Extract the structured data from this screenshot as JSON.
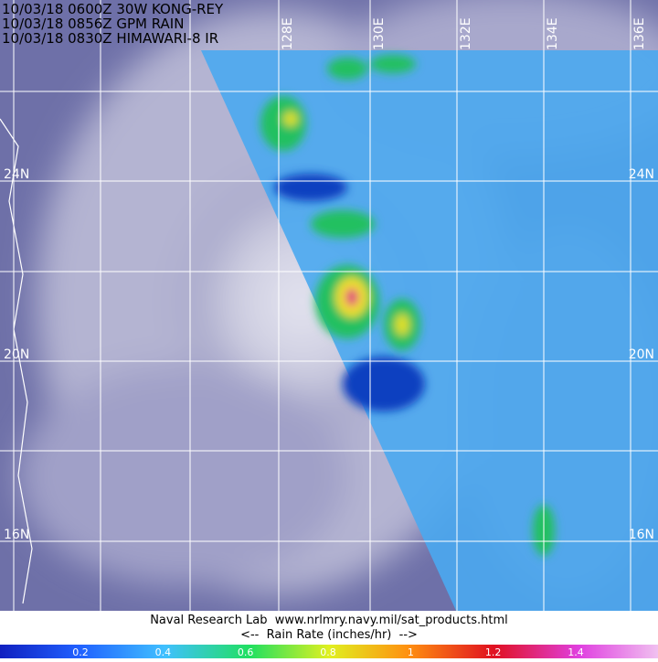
{
  "header": {
    "lines": [
      "10/03/18 0600Z 30W KONG-REY",
      "10/03/18 0856Z GPM RAIN",
      "10/03/18 0830Z HIMAWARI-8 IR"
    ]
  },
  "longitudes": [
    "128E",
    "130E",
    "132E",
    "134E",
    "136E"
  ],
  "latitudes": {
    "left": [
      "24N",
      "20N",
      "16N"
    ],
    "right": [
      "24N",
      "20N",
      "16N"
    ]
  },
  "footer": {
    "credit": "Naval Research Lab  www.nrlmry.navy.mil/sat_products.html",
    "scale_title": "<--  Rain Rate (inches/hr)  -->"
  },
  "colorbar": {
    "ticks": [
      "0.2",
      "0.4",
      "0.6",
      "0.8",
      "1",
      "1.2",
      "1.4"
    ]
  }
}
